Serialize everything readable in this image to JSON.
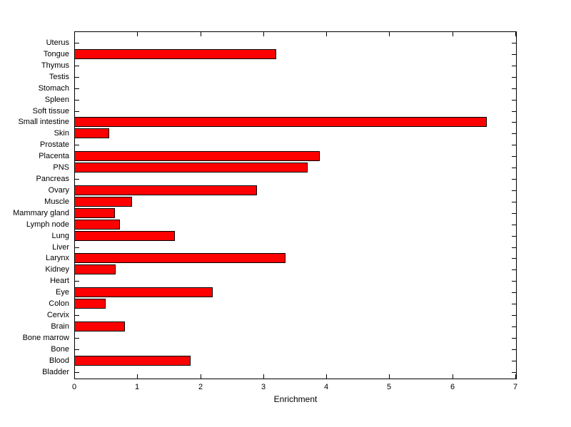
{
  "figure": {
    "background_color": "#ffffff",
    "axis_color": "#000000",
    "text_color": "#000000"
  },
  "chart_data": {
    "type": "bar",
    "orientation": "horizontal",
    "xlabel": "Enrichment",
    "xlim": [
      0,
      7
    ],
    "xticks": [
      "0",
      "1",
      "2",
      "3",
      "4",
      "5",
      "6",
      "7"
    ],
    "grid": false,
    "bar_color": "#ff0000",
    "bar_edge_color": "#000000",
    "categories": [
      "Uterus",
      "Tongue",
      "Thymus",
      "Testis",
      "Stomach",
      "Spleen",
      "Soft tissue",
      "Small intestine",
      "Skin",
      "Prostate",
      "Placenta",
      "PNS",
      "Pancreas",
      "Ovary",
      "Muscle",
      "Mammary gland",
      "Lymph node",
      "Lung",
      "Liver",
      "Larynx",
      "Kidney",
      "Heart",
      "Eye",
      "Colon",
      "Cervix",
      "Brain",
      "Bone marrow",
      "Bone",
      "Blood",
      "Bladder"
    ],
    "values": [
      0,
      3.2,
      0,
      0,
      0,
      0,
      0,
      6.55,
      0.56,
      0,
      3.9,
      3.7,
      0,
      2.9,
      0.92,
      0.65,
      0.72,
      1.6,
      0,
      3.35,
      0.66,
      0,
      2.2,
      0.5,
      0,
      0.8,
      0,
      0,
      1.85,
      0
    ]
  }
}
